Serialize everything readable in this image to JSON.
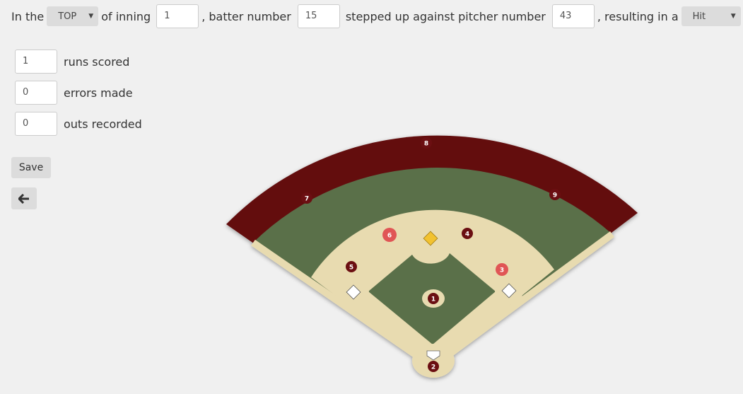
{
  "top": {
    "prefix": "In the",
    "half_selected": "TOP",
    "after_half": "of inning",
    "inning": "1",
    "after_inning": ", batter number",
    "batter": "15",
    "after_batter": "stepped up against pitcher number",
    "pitcher": "43",
    "after_pitcher": ", resulting in a",
    "result_selected": "Hit"
  },
  "stats": {
    "runs_value": "1",
    "runs_label": "runs scored",
    "errors_value": "0",
    "errors_label": "errors made",
    "outs_value": "0",
    "outs_label": "outs recorded"
  },
  "buttons": {
    "save_label": "Save",
    "back_icon": "arrow-left-icon"
  },
  "field": {
    "colors": {
      "wall": "#630e10",
      "grass": "#5a704a",
      "dirt": "#e8dbb0",
      "highlight": "#e05555",
      "marker": "#6b0f12",
      "ball": "#f2c230"
    },
    "positions": [
      {
        "num": "1",
        "label": "pitcher",
        "highlighted": false
      },
      {
        "num": "2",
        "label": "catcher",
        "highlighted": false
      },
      {
        "num": "3",
        "label": "first-base",
        "highlighted": true
      },
      {
        "num": "4",
        "label": "second-base",
        "highlighted": false
      },
      {
        "num": "5",
        "label": "third-base",
        "highlighted": false
      },
      {
        "num": "6",
        "label": "shortstop",
        "highlighted": true
      },
      {
        "num": "7",
        "label": "left-field",
        "highlighted": false
      },
      {
        "num": "8",
        "label": "center-field",
        "highlighted": false
      },
      {
        "num": "9",
        "label": "right-field",
        "highlighted": false
      }
    ]
  }
}
